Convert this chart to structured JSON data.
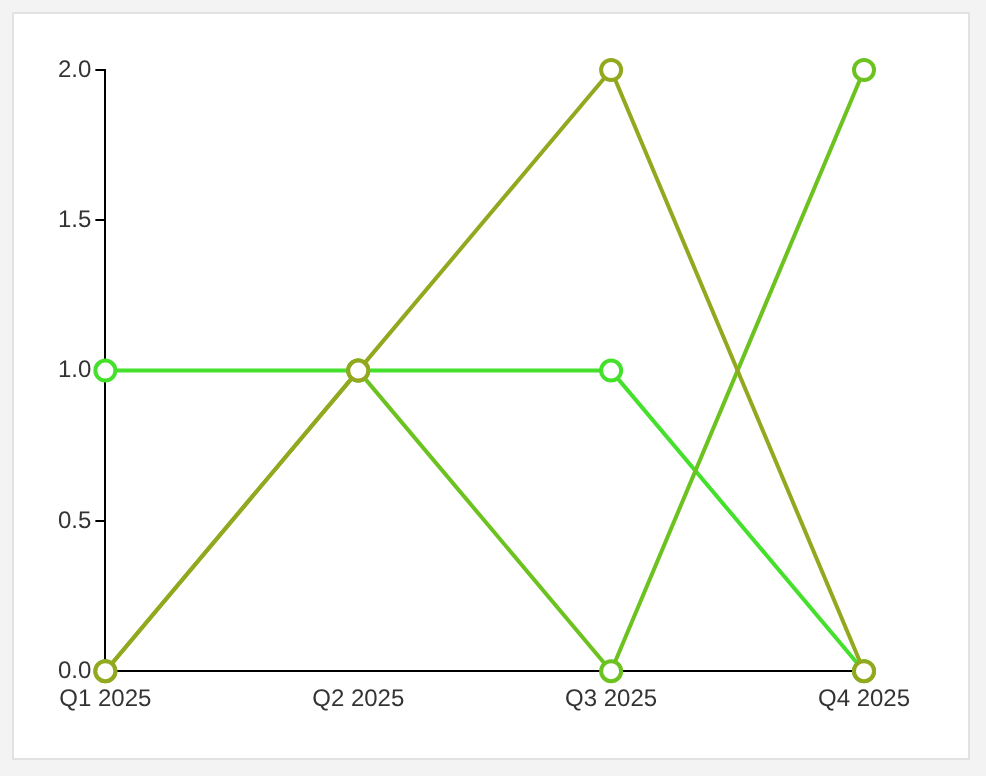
{
  "chart_data": {
    "type": "line",
    "categories": [
      "Q1 2025",
      "Q2 2025",
      "Q3 2025",
      "Q4 2025"
    ],
    "series": [
      {
        "color": "#93a81f",
        "values": [
          0,
          1,
          2,
          0
        ]
      },
      {
        "color": "#6cc21f",
        "values": [
          0,
          1,
          0,
          2
        ]
      },
      {
        "color": "#44e02c",
        "values": [
          1,
          1,
          1,
          0
        ]
      }
    ],
    "ylim": [
      0,
      2
    ],
    "yticks": [
      {
        "value": 0,
        "label": "0.0"
      },
      {
        "value": 0.5,
        "label": "0.5"
      },
      {
        "value": 1,
        "label": "1.0"
      },
      {
        "value": 1.5,
        "label": "1.5"
      },
      {
        "value": 2,
        "label": "2.0"
      }
    ],
    "grid": false,
    "legend": false,
    "marker": "circle",
    "line_style": "solid"
  }
}
